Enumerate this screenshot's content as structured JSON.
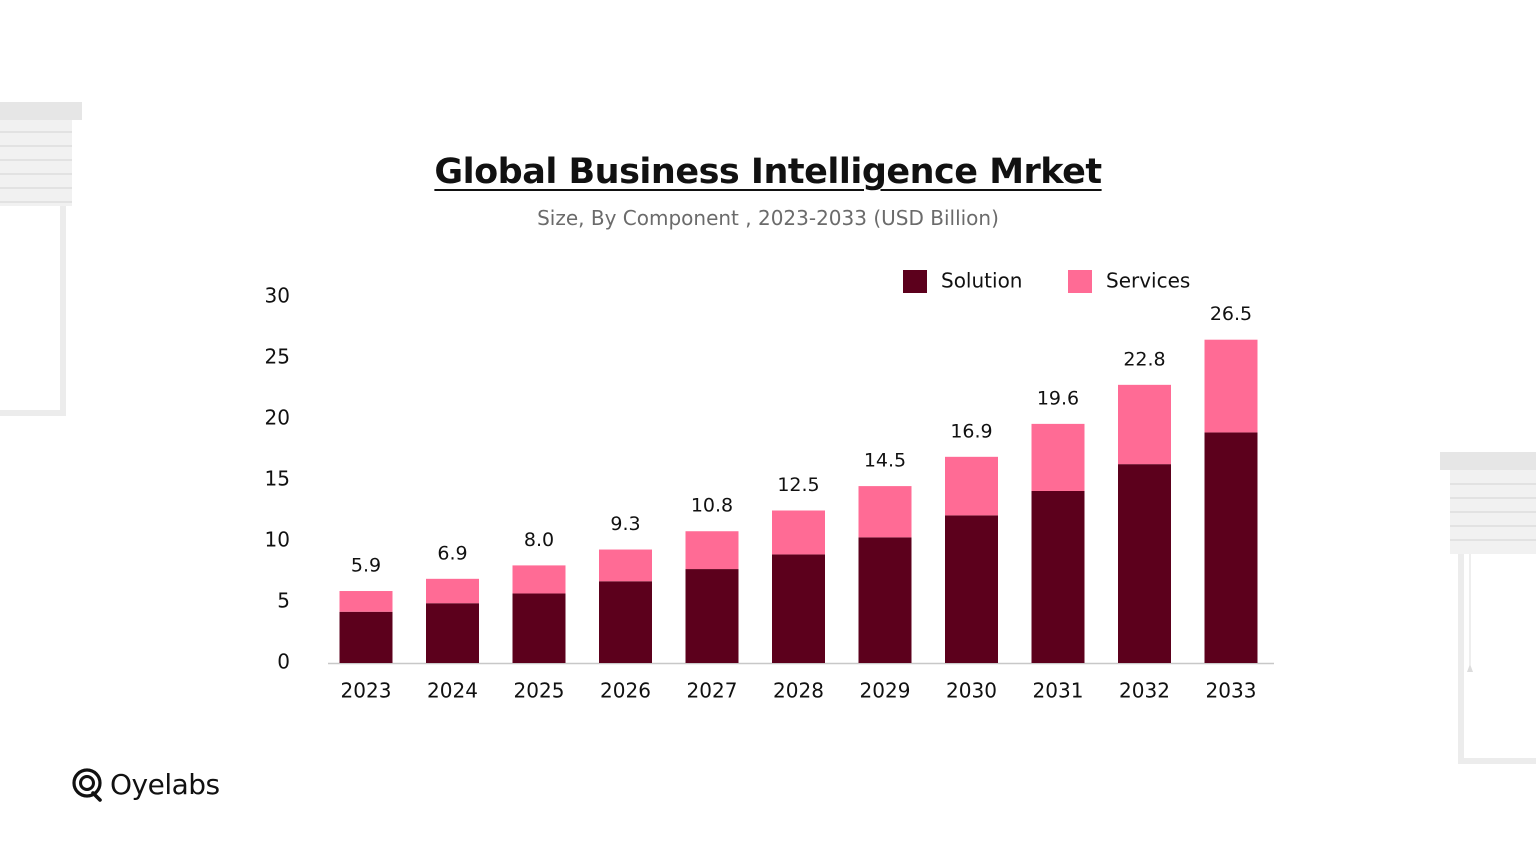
{
  "title": "Global Business Intelligence Mrket",
  "subtitle": "Size, By Component , 2023-2033 (USD Billion)",
  "brand": {
    "name": "Oyelabs",
    "logo_icon": "oyelabs-logo-icon"
  },
  "colors": {
    "solution": "#5c001c",
    "services": "#ff6b95",
    "axis": "#c8c8c8",
    "text": "#111111",
    "subtitle": "#6b6b6b"
  },
  "chart_data": {
    "type": "bar",
    "stacked": true,
    "title": "Global Business Intelligence Mrket",
    "subtitle": "Size, By Component , 2023-2033 (USD Billion)",
    "categories": [
      "2023",
      "2024",
      "2025",
      "2026",
      "2027",
      "2028",
      "2029",
      "2030",
      "2031",
      "2032",
      "2033"
    ],
    "series": [
      {
        "name": "Solution",
        "values": [
          4.2,
          4.9,
          5.7,
          6.7,
          7.7,
          8.9,
          10.3,
          12.1,
          14.1,
          16.3,
          18.9
        ]
      },
      {
        "name": "Services",
        "values": [
          1.7,
          2.0,
          2.3,
          2.6,
          3.1,
          3.6,
          4.2,
          4.8,
          5.5,
          6.5,
          7.6
        ]
      }
    ],
    "totals": [
      5.9,
      6.9,
      8.0,
      9.3,
      10.8,
      12.5,
      14.5,
      16.9,
      19.6,
      22.8,
      26.5
    ],
    "total_labels": [
      "5.9",
      "6.9",
      "8.0",
      "9.3",
      "10.8",
      "12.5",
      "14.5",
      "16.9",
      "19.6",
      "22.8",
      "26.5"
    ],
    "yticks": [
      0,
      5,
      10,
      15,
      20,
      25,
      30
    ],
    "ylim": [
      0,
      30
    ],
    "xlabel": "",
    "ylabel": "",
    "grid": false,
    "legend_position": "top-right"
  }
}
